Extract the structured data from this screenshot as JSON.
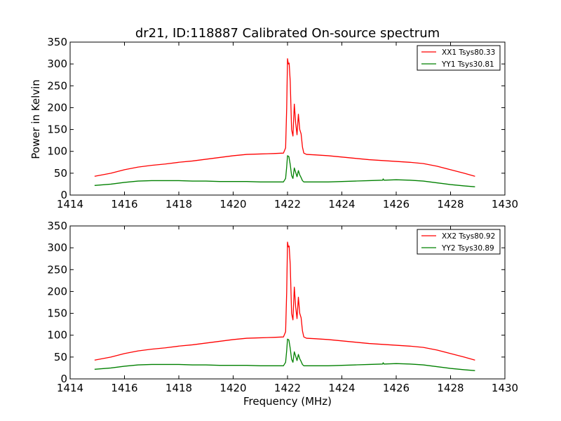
{
  "chart_data": {
    "type": "line",
    "title": "dr21, ID:118887 Calibrated On-source spectrum",
    "xlabel": "Frequency (MHz)",
    "ylabel": "Power in Kelvin",
    "xlim": [
      1414,
      1430
    ],
    "ylim": [
      0,
      350
    ],
    "xticks": [
      1414,
      1416,
      1418,
      1420,
      1422,
      1424,
      1426,
      1428,
      1430
    ],
    "yticks": [
      0,
      50,
      100,
      150,
      200,
      250,
      300,
      350
    ],
    "grid": false,
    "legend_position": "top-right",
    "colors": {
      "xx": "#ff0000",
      "yy": "#008000"
    },
    "panels": [
      {
        "series": [
          {
            "name": "XX1 Tsys80.33",
            "color": "#ff0000",
            "points": [
              [
                1414.9,
                43
              ],
              [
                1415.5,
                50
              ],
              [
                1416,
                58
              ],
              [
                1416.5,
                64
              ],
              [
                1417,
                68
              ],
              [
                1417.5,
                71
              ],
              [
                1418,
                75
              ],
              [
                1418.5,
                78
              ],
              [
                1419,
                82
              ],
              [
                1419.5,
                86
              ],
              [
                1420,
                90
              ],
              [
                1420.5,
                93
              ],
              [
                1421,
                94
              ],
              [
                1421.5,
                95
              ],
              [
                1421.85,
                96
              ],
              [
                1421.93,
                108
              ],
              [
                1421.97,
                200
              ],
              [
                1422.0,
                312
              ],
              [
                1422.03,
                300
              ],
              [
                1422.06,
                302
              ],
              [
                1422.1,
                260
              ],
              [
                1422.15,
                150
              ],
              [
                1422.2,
                135
              ],
              [
                1422.25,
                208
              ],
              [
                1422.3,
                165
              ],
              [
                1422.35,
                138
              ],
              [
                1422.4,
                185
              ],
              [
                1422.45,
                150
              ],
              [
                1422.5,
                140
              ],
              [
                1422.55,
                110
              ],
              [
                1422.6,
                96
              ],
              [
                1422.7,
                93
              ],
              [
                1423,
                92
              ],
              [
                1423.5,
                90
              ],
              [
                1424,
                87
              ],
              [
                1424.5,
                84
              ],
              [
                1425,
                81
              ],
              [
                1425.5,
                79
              ],
              [
                1426,
                77
              ],
              [
                1426.5,
                75
              ],
              [
                1427,
                72
              ],
              [
                1427.5,
                66
              ],
              [
                1428,
                58
              ],
              [
                1428.5,
                50
              ],
              [
                1428.9,
                43
              ]
            ]
          },
          {
            "name": "YY1 Tsys30.81",
            "color": "#008000",
            "points": [
              [
                1414.9,
                22
              ],
              [
                1415.5,
                25
              ],
              [
                1416,
                29
              ],
              [
                1416.5,
                32
              ],
              [
                1417,
                33
              ],
              [
                1417.5,
                33
              ],
              [
                1418,
                33
              ],
              [
                1418.5,
                32
              ],
              [
                1419,
                32
              ],
              [
                1419.5,
                31
              ],
              [
                1420,
                31
              ],
              [
                1420.5,
                31
              ],
              [
                1421,
                30
              ],
              [
                1421.5,
                30
              ],
              [
                1421.85,
                30
              ],
              [
                1421.93,
                38
              ],
              [
                1421.97,
                65
              ],
              [
                1422.0,
                90
              ],
              [
                1422.05,
                88
              ],
              [
                1422.1,
                70
              ],
              [
                1422.15,
                45
              ],
              [
                1422.2,
                38
              ],
              [
                1422.25,
                62
              ],
              [
                1422.3,
                52
              ],
              [
                1422.35,
                42
              ],
              [
                1422.4,
                56
              ],
              [
                1422.45,
                46
              ],
              [
                1422.5,
                40
              ],
              [
                1422.55,
                33
              ],
              [
                1422.6,
                30
              ],
              [
                1423,
                30
              ],
              [
                1423.5,
                30
              ],
              [
                1424,
                31
              ],
              [
                1424.5,
                32
              ],
              [
                1425,
                33
              ],
              [
                1425.5,
                34
              ],
              [
                1425.52,
                37
              ],
              [
                1425.55,
                34
              ],
              [
                1426,
                35
              ],
              [
                1426.5,
                34
              ],
              [
                1427,
                32
              ],
              [
                1427.5,
                28
              ],
              [
                1428,
                24
              ],
              [
                1428.5,
                21
              ],
              [
                1428.9,
                19
              ]
            ]
          }
        ]
      },
      {
        "series": [
          {
            "name": "XX2 Tsys80.92",
            "color": "#ff0000",
            "points": [
              [
                1414.9,
                43
              ],
              [
                1415.5,
                50
              ],
              [
                1416,
                58
              ],
              [
                1416.5,
                64
              ],
              [
                1417,
                68
              ],
              [
                1417.5,
                71
              ],
              [
                1418,
                75
              ],
              [
                1418.5,
                78
              ],
              [
                1419,
                82
              ],
              [
                1419.5,
                86
              ],
              [
                1420,
                90
              ],
              [
                1420.5,
                93
              ],
              [
                1421,
                94
              ],
              [
                1421.5,
                95
              ],
              [
                1421.85,
                96
              ],
              [
                1421.93,
                108
              ],
              [
                1421.97,
                200
              ],
              [
                1422.0,
                313
              ],
              [
                1422.03,
                302
              ],
              [
                1422.06,
                304
              ],
              [
                1422.1,
                262
              ],
              [
                1422.15,
                150
              ],
              [
                1422.2,
                135
              ],
              [
                1422.25,
                210
              ],
              [
                1422.3,
                165
              ],
              [
                1422.35,
                138
              ],
              [
                1422.4,
                187
              ],
              [
                1422.45,
                150
              ],
              [
                1422.5,
                140
              ],
              [
                1422.55,
                110
              ],
              [
                1422.6,
                96
              ],
              [
                1422.7,
                93
              ],
              [
                1423,
                92
              ],
              [
                1423.5,
                90
              ],
              [
                1424,
                87
              ],
              [
                1424.5,
                84
              ],
              [
                1425,
                81
              ],
              [
                1425.5,
                79
              ],
              [
                1426,
                77
              ],
              [
                1426.5,
                75
              ],
              [
                1427,
                72
              ],
              [
                1427.5,
                66
              ],
              [
                1428,
                58
              ],
              [
                1428.5,
                50
              ],
              [
                1428.9,
                43
              ]
            ]
          },
          {
            "name": "YY2 Tsys30.89",
            "color": "#008000",
            "points": [
              [
                1414.9,
                22
              ],
              [
                1415.5,
                25
              ],
              [
                1416,
                29
              ],
              [
                1416.5,
                32
              ],
              [
                1417,
                33
              ],
              [
                1417.5,
                33
              ],
              [
                1418,
                33
              ],
              [
                1418.5,
                32
              ],
              [
                1419,
                32
              ],
              [
                1419.5,
                31
              ],
              [
                1420,
                31
              ],
              [
                1420.5,
                31
              ],
              [
                1421,
                30
              ],
              [
                1421.5,
                30
              ],
              [
                1421.85,
                30
              ],
              [
                1421.93,
                38
              ],
              [
                1421.97,
                65
              ],
              [
                1422.0,
                91
              ],
              [
                1422.05,
                89
              ],
              [
                1422.1,
                70
              ],
              [
                1422.15,
                45
              ],
              [
                1422.2,
                38
              ],
              [
                1422.25,
                62
              ],
              [
                1422.3,
                52
              ],
              [
                1422.35,
                42
              ],
              [
                1422.4,
                56
              ],
              [
                1422.45,
                46
              ],
              [
                1422.5,
                40
              ],
              [
                1422.55,
                33
              ],
              [
                1422.6,
                30
              ],
              [
                1423,
                30
              ],
              [
                1423.5,
                30
              ],
              [
                1424,
                31
              ],
              [
                1424.5,
                32
              ],
              [
                1425,
                33
              ],
              [
                1425.5,
                34
              ],
              [
                1425.52,
                37
              ],
              [
                1425.55,
                34
              ],
              [
                1426,
                35
              ],
              [
                1426.5,
                34
              ],
              [
                1427,
                32
              ],
              [
                1427.5,
                28
              ],
              [
                1428,
                24
              ],
              [
                1428.5,
                21
              ],
              [
                1428.9,
                19
              ]
            ]
          }
        ]
      }
    ]
  }
}
